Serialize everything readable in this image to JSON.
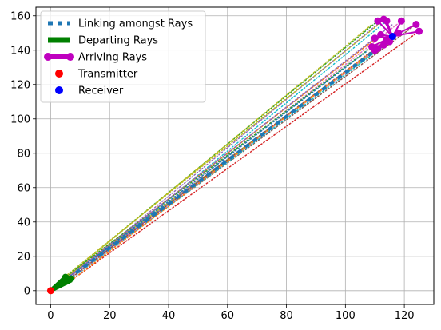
{
  "chart_data": {
    "type": "scatter",
    "xlim": [
      -5,
      130
    ],
    "ylim": [
      -8,
      165
    ],
    "x_ticks": [
      0,
      20,
      40,
      60,
      80,
      100,
      120
    ],
    "y_ticks": [
      0,
      20,
      40,
      60,
      80,
      100,
      120,
      140,
      160
    ],
    "grid": true,
    "legend_position": "top-left",
    "transmitter": {
      "x": 0,
      "y": 0
    },
    "receiver": {
      "x": 116,
      "y": 148
    },
    "departing_points": [
      [
        5,
        8
      ],
      [
        6,
        7
      ],
      [
        7,
        7
      ],
      [
        6,
        6
      ],
      [
        5,
        5
      ],
      [
        4,
        6
      ],
      [
        7,
        6
      ],
      [
        3,
        4
      ],
      [
        2,
        3
      ],
      [
        1,
        1
      ]
    ],
    "arriving_points": [
      [
        111,
        157
      ],
      [
        113,
        158
      ],
      [
        114,
        157
      ],
      [
        119,
        157
      ],
      [
        124,
        155
      ],
      [
        125,
        151
      ],
      [
        118,
        150
      ],
      [
        112,
        149
      ],
      [
        110,
        147
      ],
      [
        109,
        142
      ],
      [
        111,
        141
      ],
      [
        113,
        143
      ],
      [
        115,
        145
      ],
      [
        110,
        140
      ],
      [
        114,
        146
      ]
    ],
    "linking_from": [
      6,
      7
    ],
    "linking_to": [
      111,
      141
    ],
    "dotted_paths": [
      {
        "x0": 5,
        "y0": 8,
        "x1": 111,
        "y1": 157,
        "color": "#2ca02c"
      },
      {
        "x0": 6,
        "y0": 7,
        "x1": 113,
        "y1": 158,
        "color": "#9467bd"
      },
      {
        "x0": 4,
        "y0": 6,
        "x1": 109,
        "y1": 155,
        "color": "#bcbd22"
      },
      {
        "x0": 7,
        "y0": 7,
        "x1": 114,
        "y1": 157,
        "color": "#17becf"
      },
      {
        "x0": 6,
        "y0": 6,
        "x1": 119,
        "y1": 157,
        "color": "#e377c2"
      },
      {
        "x0": 5,
        "y0": 5,
        "x1": 124,
        "y1": 155,
        "color": "#8c564b"
      },
      {
        "x0": 7,
        "y0": 6,
        "x1": 125,
        "y1": 151,
        "color": "#d62728"
      },
      {
        "x0": 3,
        "y0": 4,
        "x1": 118,
        "y1": 150,
        "color": "#1f77b4"
      },
      {
        "x0": 2,
        "y0": 3,
        "x1": 112,
        "y1": 149,
        "color": "#ff7f0e"
      },
      {
        "x0": 1,
        "y0": 1,
        "x1": 110,
        "y1": 147,
        "color": "#7f7f7f"
      },
      {
        "x0": 5,
        "y0": 8,
        "x1": 109,
        "y1": 142,
        "color": "#2ca02c"
      },
      {
        "x0": 6,
        "y0": 7,
        "x1": 111,
        "y1": 141,
        "color": "#9467bd"
      },
      {
        "x0": 4,
        "y0": 6,
        "x1": 113,
        "y1": 143,
        "color": "#bcbd22"
      },
      {
        "x0": 7,
        "y0": 7,
        "x1": 115,
        "y1": 145,
        "color": "#17becf"
      },
      {
        "x0": 6,
        "y0": 6,
        "x1": 110,
        "y1": 140,
        "color": "#e377c2"
      },
      {
        "x0": 5,
        "y0": 5,
        "x1": 114,
        "y1": 146,
        "color": "#8c564b"
      },
      {
        "x0": 7,
        "y0": 6,
        "x1": 108,
        "y1": 138,
        "color": "#ff7f0e"
      },
      {
        "x0": 3,
        "y0": 4,
        "x1": 107,
        "y1": 139,
        "color": "#1f77b4"
      },
      {
        "x0": 4,
        "y0": 7,
        "x1": 112,
        "y1": 156,
        "color": "#bcbd22"
      },
      {
        "x0": 6,
        "y0": 8,
        "x1": 116,
        "y1": 155,
        "color": "#9467bd"
      }
    ],
    "colors": {
      "linking": "#1f77b4",
      "departing": "#008000",
      "arriving": "#bf00bf",
      "transmitter": "#ff0000",
      "receiver": "#0000ff",
      "grid": "#b0b0b0"
    },
    "legend": [
      {
        "label": "Linking amongst Rays",
        "style": "dashed",
        "color": "#1f77b4"
      },
      {
        "label": "Departing Rays",
        "style": "thick",
        "color": "#008000"
      },
      {
        "label": "Arriving Rays",
        "style": "marker-line",
        "color": "#bf00bf"
      },
      {
        "label": "Transmitter",
        "style": "dot",
        "color": "#ff0000"
      },
      {
        "label": "Receiver",
        "style": "dot",
        "color": "#0000ff"
      }
    ]
  }
}
